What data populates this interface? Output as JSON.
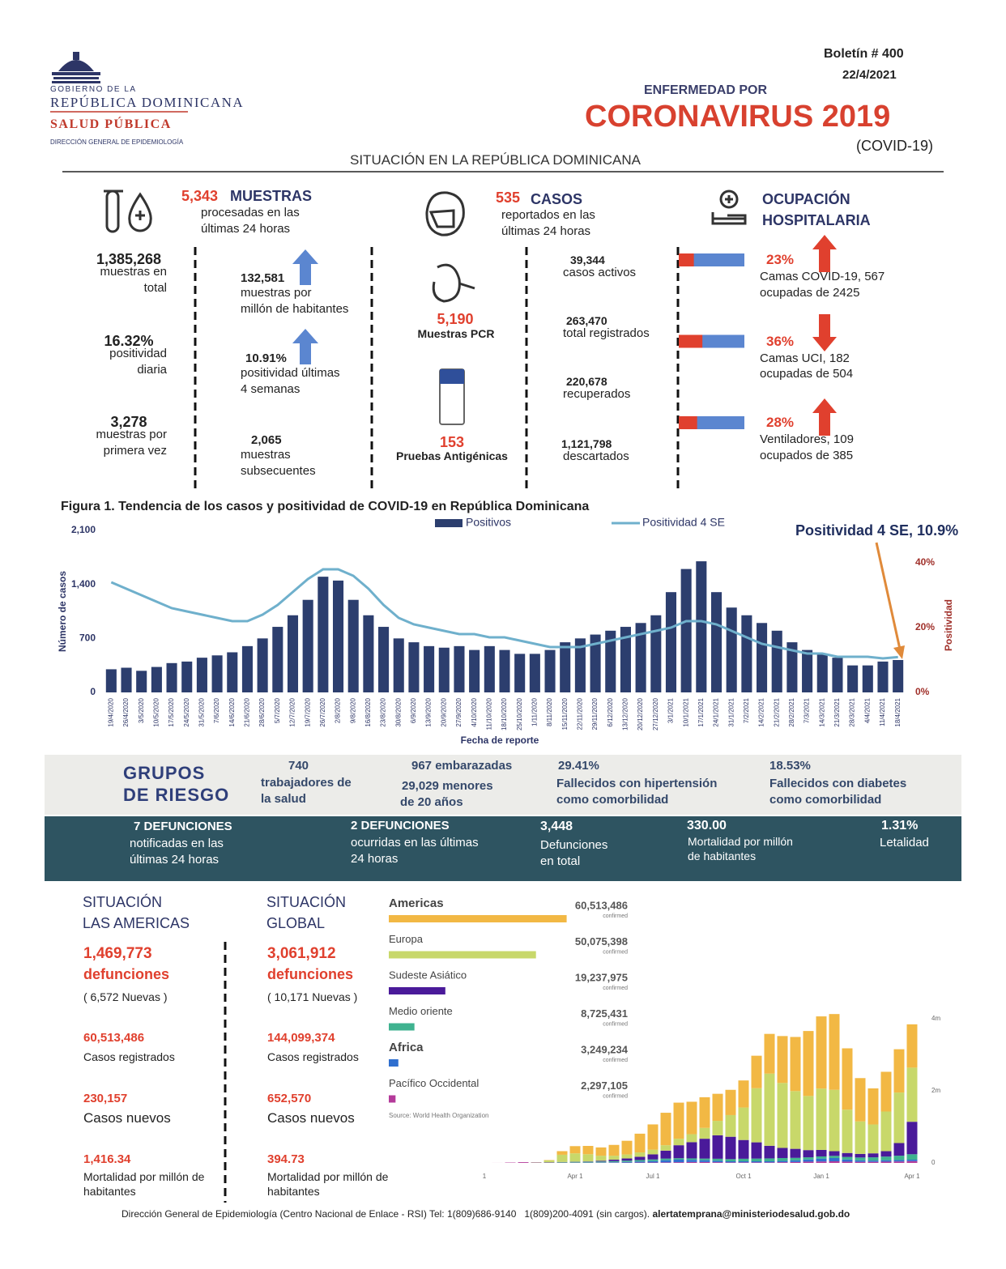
{
  "header": {
    "org1": "GOBIERNO DE LA",
    "org2": "REPÚBLICA DOMINICANA",
    "org3": "SALUD PÚBLICA",
    "org4": "DIRECCIÓN GENERAL DE EPIDEMIOLOGÍA",
    "bulletin": "Boletín # 400",
    "date": "22/4/2021",
    "pre_title": "ENFERMEDAD POR",
    "title": "CORONAVIRUS 2019",
    "subtitle": "(COVID-19)",
    "section": "SITUACIÓN EN LA REPÚBLICA DOMINICANA"
  },
  "muestras": {
    "value": "5,343",
    "label": "MUESTRAS",
    "desc": "procesadas en las\núltimas 24 horas",
    "stats": [
      {
        "value": "1,385,268",
        "text": "muestras en\ntotal"
      },
      {
        "value": "16.32%",
        "text": "positividad\ndiaria"
      },
      {
        "value": "3,278",
        "text": "muestras por\nprimera vez"
      }
    ],
    "stats2": [
      {
        "value": "132,581",
        "text": "muestras por\nmillón de habitantes"
      },
      {
        "value": "10.91%",
        "text": "positividad últimas\n4 semanas"
      },
      {
        "value": "2,065",
        "text": "muestras\nsubsecuentes"
      }
    ]
  },
  "casos": {
    "value": "535",
    "label": "CASOS",
    "desc": "reportados en las\núltimas 24 horas",
    "pcr": {
      "value": "5,190",
      "label": "Muestras PCR"
    },
    "antigen": {
      "value": "153",
      "label": "Pruebas Antigénicas"
    },
    "stats": [
      {
        "value": "39,344",
        "text": "casos activos"
      },
      {
        "value": "263,470",
        "text": "total registrados"
      },
      {
        "value": "220,678",
        "text": "recuperados"
      },
      {
        "value": "1,121,798",
        "text": "descartados"
      }
    ]
  },
  "hospital": {
    "title": "OCUPACIÓN\nHOSPITALARIA",
    "items": [
      {
        "value": 23,
        "value_label": "23%",
        "text": "Camas COVID-19,  567\nocupadas de 2425"
      },
      {
        "value": 36,
        "value_label": "36%",
        "text": "Camas UCI,  182\nocupadas de 504"
      },
      {
        "value": 28,
        "value_label": "28%",
        "text": "Ventiladores, 109\nocupados de 385"
      }
    ]
  },
  "riesgo": {
    "title": "GRUPOS\nDE RIESGO",
    "items": [
      {
        "value": "740",
        "text": "trabajadores de\nla salud"
      },
      {
        "value": "967",
        "text": "embarazadas"
      },
      {
        "value": "29,029",
        "text": "menores\nde 20 años"
      },
      {
        "value": "29.41%",
        "text": "Fallecidos con hipertensión\ncomo comorbilidad"
      },
      {
        "value": "18.53%",
        "text": "Fallecidos con diabetes\ncomo comorbilidad"
      }
    ]
  },
  "defunciones": {
    "items": [
      {
        "value": "7",
        "label": "DEFUNCIONES",
        "text": "notificadas en las\núltimas 24 horas"
      },
      {
        "value": "2",
        "label": "DEFUNCIONES",
        "text": "ocurridas en las últimas\n24 horas"
      },
      {
        "value": "3,448",
        "text": "Defunciones\nen total"
      },
      {
        "value": "330.00",
        "text": "Mortalidad por millón\nde habitantes"
      },
      {
        "value": "1.31%",
        "text": "Letalidad"
      }
    ]
  },
  "americas": {
    "title": "SITUACIÓN\nLAS AMERICAS",
    "deaths": "1,469,773",
    "deaths_label": "defunciones",
    "new": "( 6,572 Nuevas )",
    "stats": [
      {
        "value": "60,513,486",
        "text": "Casos registrados"
      },
      {
        "value": "230,157",
        "text": "Casos nuevos"
      },
      {
        "value": "1,416.34",
        "text": "Mortalidad por millón de\nhabitantes"
      }
    ]
  },
  "global": {
    "title": "SITUACIÓN\nGLOBAL",
    "deaths": "3,061,912",
    "deaths_label": "defunciones",
    "new": "( 10,171 Nuevas )",
    "stats": [
      {
        "value": "144,099,374",
        "text": "Casos registrados"
      },
      {
        "value": "652,570",
        "text": "Casos nuevos"
      },
      {
        "value": "394.73",
        "text": "Mortalidad por millón de\nhabitantes"
      }
    ]
  },
  "footer": {
    "text": "Dirección General de Epidemiología (Centro Nacional de Enlace - RSI) Tel: 1(809)686-9140   1(809)200-4091 (sin cargos).",
    "email": "alertatemprana@ministeriodesalud.gob.do"
  },
  "chart_data": [
    {
      "type": "bar",
      "title": "Figura 1. Tendencia de los casos y positividad de COVID-19 en República Dominicana",
      "annotation": "Positividad 4 SE, 10.9%",
      "y_label": "Número de casos",
      "y2_label": "Positividad",
      "x_label": "Fecha de reporte",
      "categories": [
        "19/4/2020",
        "26/4/2020",
        "3/5/2020",
        "10/5/2020",
        "17/5/2020",
        "24/5/2020",
        "31/5/2020",
        "7/6/2020",
        "14/6/2020",
        "21/6/2020",
        "28/6/2020",
        "5/7/2020",
        "12/7/2020",
        "19/7/2020",
        "26/7/2020",
        "2/8/2020",
        "9/8/2020",
        "16/8/2020",
        "23/8/2020",
        "30/8/2020",
        "6/9/2020",
        "13/9/2020",
        "20/9/2020",
        "27/9/2020",
        "4/10/2020",
        "11/10/2020",
        "18/10/2020",
        "25/10/2020",
        "1/11/2020",
        "8/11/2020",
        "15/11/2020",
        "22/11/2020",
        "29/11/2020",
        "6/12/2020",
        "13/12/2020",
        "20/12/2020",
        "27/12/2020",
        "3/1/2021",
        "10/1/2021",
        "17/1/2021",
        "24/1/2021",
        "31/1/2021",
        "7/2/2021",
        "14/2/2021",
        "21/2/2021",
        "28/2/2021",
        "7/3/2021",
        "14/3/2021",
        "21/3/2021",
        "28/3/2021",
        "4/4/2021",
        "11/4/2021",
        "18/4/2021"
      ],
      "series": [
        {
          "name": "Positivos",
          "color": "#2c3e6e",
          "values": [
            300,
            320,
            280,
            330,
            380,
            400,
            450,
            480,
            520,
            600,
            700,
            850,
            1000,
            1200,
            1500,
            1450,
            1200,
            1000,
            850,
            700,
            650,
            600,
            580,
            600,
            550,
            600,
            550,
            500,
            500,
            550,
            650,
            700,
            750,
            800,
            850,
            900,
            1000,
            1300,
            1600,
            1700,
            1300,
            1100,
            1000,
            900,
            800,
            650,
            550,
            500,
            450,
            350,
            350,
            400,
            420
          ]
        },
        {
          "name": "Positividad 4 SE",
          "color": "#6fb0cc",
          "axis": "y2",
          "values": [
            34,
            32,
            30,
            28,
            26,
            25,
            24,
            23,
            22,
            22,
            24,
            27,
            31,
            35,
            38,
            38,
            36,
            32,
            27,
            23,
            21,
            20,
            19,
            18,
            18,
            17,
            17,
            16,
            15,
            14,
            14,
            14,
            15,
            16,
            17,
            18,
            19,
            20,
            22,
            22,
            21,
            19,
            17,
            15,
            14,
            13,
            12,
            12,
            11,
            11,
            11,
            10.5,
            10.9
          ]
        }
      ],
      "ylim": [
        0,
        2100
      ],
      "yticks": [
        0,
        700,
        {
          "value": 1400,
          "label": "1,400"
        },
        {
          "value": 2100,
          "label": "2,100"
        }
      ],
      "y2lim": [
        0,
        50
      ],
      "y2ticks": [
        {
          "value": 0,
          "label": "0%"
        },
        {
          "value": 20,
          "label": "20%"
        },
        {
          "value": 40,
          "label": "40%"
        }
      ],
      "grid": false
    },
    {
      "type": "hbar",
      "categories": [
        "Americas",
        "Europa",
        "Sudeste Asiático",
        "Medio oriente",
        "Africa",
        "Pacífico Occidental"
      ],
      "values": [
        60513486,
        50075398,
        19237975,
        8725431,
        3249234,
        2297105
      ],
      "value_labels": [
        "60,513,486",
        "50,075,398",
        "19,237,975",
        "8,725,431",
        "3,249,234",
        "2,297,105"
      ],
      "colors": [
        "#f2b844",
        "#c8d86a",
        "#4a1a9a",
        "#3fb28f",
        "#2f6fcf",
        "#b43a9a"
      ],
      "unit": "confirmed",
      "source": "Source: World Health Organization",
      "xlim": [
        0,
        70000000
      ]
    },
    {
      "type": "stacked_bar",
      "categories": [
        "1",
        null,
        null,
        null,
        null,
        null,
        null,
        "Apr 1",
        null,
        null,
        null,
        null,
        null,
        "Jul 1",
        null,
        null,
        null,
        null,
        null,
        null,
        "Oct 1",
        null,
        null,
        null,
        null,
        null,
        "Jan 1",
        null,
        null,
        null,
        null,
        null,
        null,
        "Apr 1"
      ],
      "series": [
        {
          "color": "#f2b844",
          "values": [
            0,
            0,
            0,
            0,
            0,
            10000,
            100000,
            200000,
            230000,
            230000,
            300000,
            380000,
            520000,
            700000,
            900000,
            1000000,
            900000,
            850000,
            750000,
            700000,
            750000,
            900000,
            1100000,
            1300000,
            1500000,
            1800000,
            2000000,
            2100000,
            1700000,
            1200000,
            1000000,
            1100000,
            1200000,
            1200000
          ]
        },
        {
          "color": "#c8d86a",
          "values": [
            0,
            0,
            0,
            0,
            5000,
            50000,
            200000,
            230000,
            200000,
            140000,
            110000,
            110000,
            120000,
            130000,
            150000,
            180000,
            220000,
            300000,
            400000,
            600000,
            900000,
            1500000,
            2000000,
            1800000,
            1600000,
            1500000,
            1700000,
            1700000,
            1200000,
            900000,
            800000,
            1100000,
            1400000,
            1500000
          ]
        },
        {
          "color": "#4a1a9a",
          "values": [
            0,
            0,
            0,
            0,
            0,
            0,
            2000,
            5000,
            10000,
            20000,
            40000,
            60000,
            90000,
            140000,
            220000,
            360000,
            450000,
            550000,
            650000,
            620000,
            520000,
            450000,
            350000,
            280000,
            250000,
            200000,
            180000,
            130000,
            110000,
            100000,
            110000,
            150000,
            350000,
            900000
          ]
        },
        {
          "color": "#3fb28f",
          "values": [
            0,
            0,
            0,
            0,
            5000,
            10000,
            15000,
            20000,
            20000,
            25000,
            30000,
            35000,
            40000,
            45000,
            45000,
            40000,
            40000,
            45000,
            55000,
            60000,
            70000,
            75000,
            80000,
            80000,
            70000,
            60000,
            60000,
            60000,
            70000,
            80000,
            90000,
            100000,
            120000,
            150000
          ]
        },
        {
          "color": "#2f6fcf",
          "values": [
            0,
            0,
            0,
            0,
            0,
            0,
            1000,
            3000,
            5000,
            8000,
            12000,
            20000,
            30000,
            40000,
            60000,
            70000,
            60000,
            50000,
            40000,
            30000,
            30000,
            30000,
            30000,
            35000,
            45000,
            60000,
            80000,
            90000,
            60000,
            40000,
            35000,
            40000,
            40000,
            40000
          ]
        },
        {
          "color": "#b43a9a",
          "values": [
            0,
            1000,
            10000,
            20000,
            10000,
            10000,
            8000,
            7000,
            6000,
            6000,
            7000,
            8000,
            10000,
            12000,
            15000,
            20000,
            25000,
            25000,
            20000,
            15000,
            15000,
            15000,
            15000,
            20000,
            25000,
            35000,
            40000,
            45000,
            35000,
            30000,
            30000,
            35000,
            40000,
            50000
          ]
        }
      ],
      "ylim": [
        0,
        4600000
      ],
      "yticks": [
        0,
        {
          "value": 2000000,
          "label": "2m"
        },
        {
          "value": 4000000,
          "label": "4m"
        }
      ]
    }
  ]
}
